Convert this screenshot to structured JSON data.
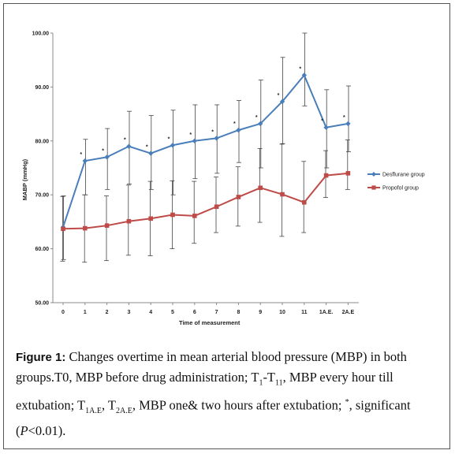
{
  "chart_data": {
    "type": "line",
    "ylabel": "MABP (mmHg)",
    "xlabel": "Time of measurement",
    "ylim": [
      50,
      100
    ],
    "yticks": [
      "50.00",
      "60.00",
      "70.00",
      "80.00",
      "90.00",
      "100.00"
    ],
    "categories": [
      "0",
      "1",
      "2",
      "3",
      "4",
      "5",
      "6",
      "7",
      "8",
      "9",
      "10",
      "11",
      "1A.E.",
      "2A.E"
    ],
    "grid": false,
    "legend_position": "right",
    "series": [
      {
        "name": "Desflurane group",
        "color": "#4a7ebb",
        "marker": "diamond",
        "values": [
          64,
          76.3,
          77,
          79,
          77.7,
          79.2,
          80,
          80.5,
          82,
          83.2,
          87.3,
          92.2,
          82.5,
          83.2
        ],
        "err_low": [
          58,
          70,
          71,
          72,
          71,
          70,
          73,
          74,
          76,
          75,
          79.5,
          86.5,
          75,
          78
        ],
        "err_high": [
          69.8,
          80.3,
          82.3,
          85.5,
          84.7,
          85.7,
          86.7,
          86.7,
          87.5,
          91.3,
          95.5,
          100,
          89.5,
          90.2
        ],
        "significance": [
          "",
          "*",
          "*",
          "*",
          "*",
          "*",
          "*",
          "*",
          "*",
          "*",
          "*",
          "*",
          "*",
          "*"
        ]
      },
      {
        "name": "Propofol group",
        "color": "#be4b48",
        "marker": "square",
        "values": [
          63.7,
          63.8,
          64.3,
          65.1,
          65.6,
          66.3,
          66.1,
          67.8,
          69.6,
          71.3,
          70.1,
          68.6,
          73.6,
          74
        ],
        "err_low": [
          57.7,
          57.5,
          57.8,
          58.8,
          58.7,
          60,
          61,
          63,
          64.2,
          64.9,
          62.3,
          63,
          69.5,
          71
        ],
        "err_high": [
          69.7,
          70,
          69.8,
          71.8,
          72.5,
          72.6,
          72.5,
          73.3,
          75.2,
          78.6,
          79.4,
          76.2,
          78.2,
          80.2
        ]
      }
    ]
  },
  "caption": {
    "label": "Figure 1:",
    "t1": " Changes overtime in mean arterial blood pressure (MBP) in both groups.T0, MBP before drug administration; T",
    "s1": "1",
    "t2": "-T",
    "s2": "11",
    "t3": ", MBP every hour till extubation; T",
    "s3": "1A.E",
    "t4": ", T",
    "s4": "2A.E",
    "t5": ", MBP one& two hours after extubation; ",
    "sup1": "*",
    "t6": ", significant (",
    "ital": "P",
    "t7": "<0.01)."
  }
}
